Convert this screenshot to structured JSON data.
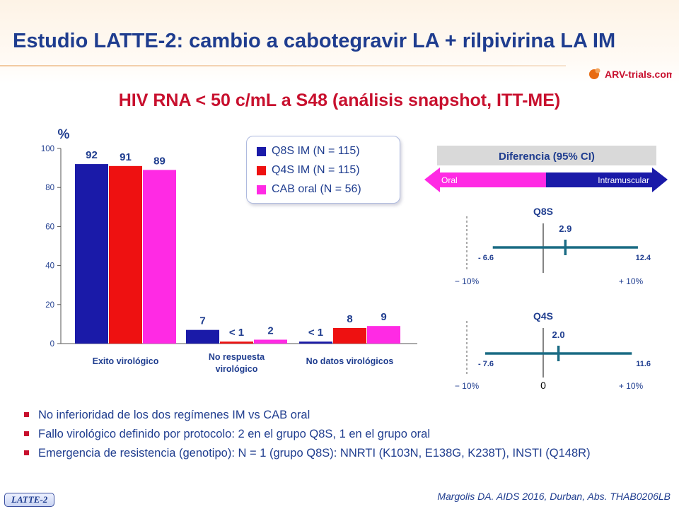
{
  "title": "Estudio LATTE-2: cambio a cabotegravir LA + rilpivirina LA IM",
  "logo": {
    "icon": "arv-trials-logo",
    "text": "ARV-trials.com"
  },
  "subtitle": "HIV RNA < 50 c/mL a S48 (análisis snapshot, ITT-ME)",
  "colors": {
    "title": "#1f3d8f",
    "accent": "#c8102e",
    "q8s": "#1a1aa8",
    "q4s": "#ee1111",
    "cab": "#ff2ae4",
    "ci": "#1a6b84"
  },
  "chart_data": [
    {
      "type": "bar",
      "ylabel": "%",
      "ylim": [
        0,
        100
      ],
      "yticks": [
        0,
        20,
        40,
        60,
        80,
        100
      ],
      "categories": [
        "Exito virológico",
        "No respuesta virológico",
        "No datos virológicos"
      ],
      "category_lines": [
        [
          "Exito virológico"
        ],
        [
          "No respuesta",
          "virológico"
        ],
        [
          "No datos virológicos"
        ]
      ],
      "series": [
        {
          "name": "Q8S IM (N = 115)",
          "color": "#1a1aa8",
          "values": [
            92,
            7,
            1
          ],
          "labels": [
            "92",
            "7",
            "< 1"
          ]
        },
        {
          "name": "Q4S IM (N = 115)",
          "color": "#ee1111",
          "values": [
            91,
            1,
            8
          ],
          "labels": [
            "91",
            "< 1",
            "8"
          ]
        },
        {
          "name": "CAB oral (N = 56)",
          "color": "#ff2ae4",
          "values": [
            89,
            2,
            9
          ],
          "labels": [
            "89",
            "2",
            "9"
          ]
        }
      ],
      "legend_position": "top-center"
    },
    {
      "type": "forest",
      "title": "Diferencia (95% CI)",
      "arrow_left": "Oral",
      "arrow_right": "Intramuscular",
      "xlim": [
        -10,
        10
      ],
      "xtick_labels": [
        "− 10%",
        "+ 10%"
      ],
      "panels": [
        {
          "name": "Q8S",
          "estimate": 2.9,
          "lower": -6.6,
          "upper": 12.4,
          "estimate_label": "2.9",
          "lower_label": "- 6.6",
          "upper_label": "12.4",
          "zero_label": ""
        },
        {
          "name": "Q4S",
          "estimate": 2.0,
          "lower": -7.6,
          "upper": 11.6,
          "estimate_label": "2.0",
          "lower_label": "- 7.6",
          "upper_label": "11.6",
          "zero_label": "0"
        }
      ]
    }
  ],
  "bullets": [
    "No inferioridad de los dos regímenes IM  vs CAB oral",
    "Fallo virológico definido por protocolo: 2 en el grupo Q8S, 1 en el grupo oral",
    "Emergencia de resistencia (genotipo): N = 1 (grupo Q8S): NNRTI (K103N, E138G, K238T), INSTI (Q148R)"
  ],
  "study_tag": "LATTE-2",
  "citation": "Margolis DA. AIDS 2016, Durban, Abs. THAB0206LB"
}
